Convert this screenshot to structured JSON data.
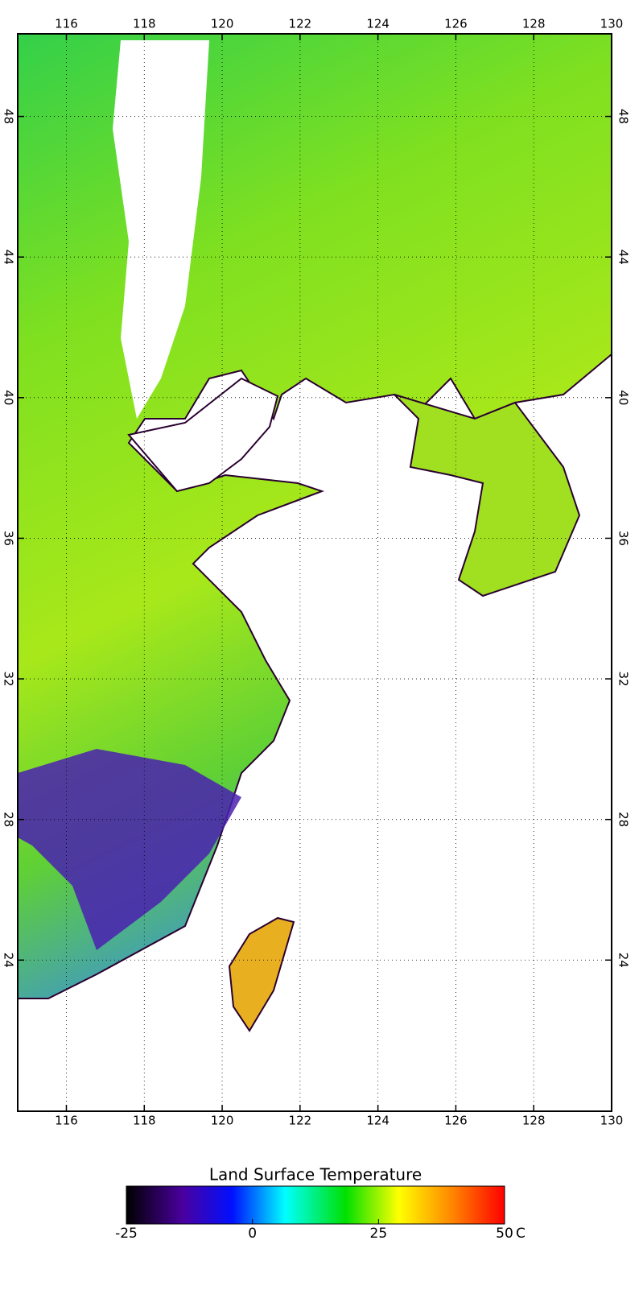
{
  "map": {
    "xlim": [
      114.75,
      130
    ],
    "ylim": [
      19.7,
      50.35
    ],
    "xticks": [
      116,
      118,
      120,
      122,
      124,
      126,
      128,
      130
    ],
    "yticks": [
      24,
      28,
      32,
      36,
      40,
      44,
      48
    ]
  },
  "colorbar": {
    "title": "Land Surface Temperature",
    "range": [
      -25,
      50
    ],
    "ticks": [
      -25,
      0,
      25,
      50
    ],
    "unit": "C"
  }
}
